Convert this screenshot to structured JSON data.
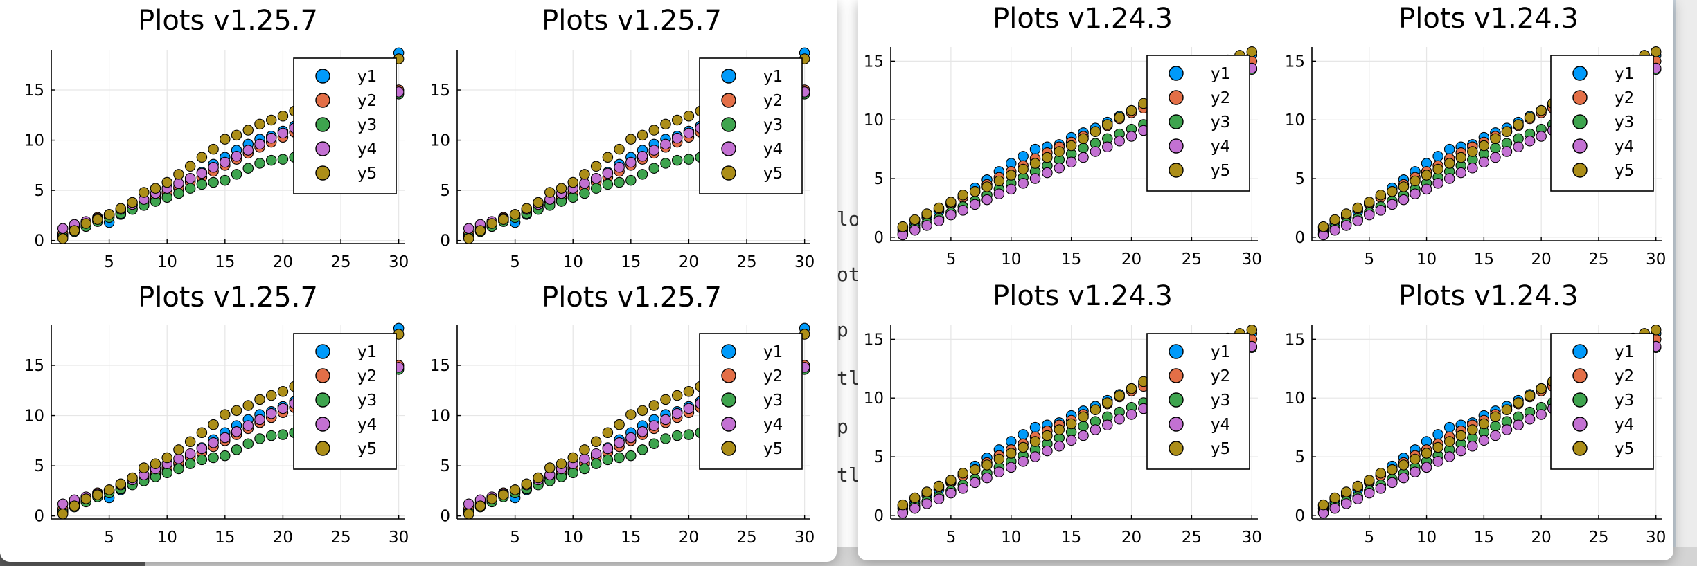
{
  "windows": [
    {
      "name": "plots-window-left",
      "version_title": "Plots v1.25.7"
    },
    {
      "name": "plots-window-right",
      "version_title": "Plots v1.24.3"
    }
  ],
  "background_fragments": [
    "lot",
    "ot(",
    "p",
    "tl",
    "p",
    "tl"
  ],
  "series_colors": {
    "y1": "#009afa",
    "y2": "#e36f47",
    "y3": "#3ea44e",
    "y4": "#c371d2",
    "y5": "#ac8e18"
  },
  "chart_data": [
    {
      "id": "left",
      "type": "scatter",
      "title": "Plots v1.25.7",
      "panels": 4,
      "xlabel": "",
      "ylabel": "",
      "xlim": [
        0,
        30.5
      ],
      "ylim": [
        -0.3,
        19
      ],
      "xticks": [
        5,
        10,
        15,
        20,
        25,
        30
      ],
      "yticks": [
        0,
        5,
        10,
        15
      ],
      "grid": true,
      "legend": "top-right",
      "x": [
        1,
        2,
        3,
        4,
        5,
        6,
        7,
        8,
        9,
        10,
        11,
        12,
        13,
        14,
        15,
        16,
        17,
        18,
        19,
        20,
        21,
        22,
        23,
        24,
        25,
        26,
        27,
        28,
        29,
        30
      ],
      "series": [
        {
          "name": "y1",
          "values": [
            0.5,
            1.1,
            1.6,
            2.0,
            1.8,
            2.6,
            3.2,
            3.8,
            4.2,
            4.7,
            5.2,
            6.0,
            6.8,
            7.6,
            8.3,
            9.0,
            9.6,
            10.1,
            10.4,
            10.9,
            11.4,
            11.8,
            12.2,
            12.6,
            13.2,
            13.9,
            14.6,
            15.3,
            16.8,
            18.7
          ]
        },
        {
          "name": "y2",
          "values": [
            0.7,
            1.3,
            1.8,
            2.3,
            2.5,
            3.0,
            3.5,
            3.9,
            4.4,
            4.8,
            5.3,
            5.8,
            6.3,
            6.9,
            7.5,
            8.1,
            8.7,
            9.3,
            9.8,
            10.3,
            10.8,
            11.3,
            11.8,
            12.3,
            12.8,
            13.3,
            13.8,
            14.2,
            14.6,
            15.0
          ]
        },
        {
          "name": "y3",
          "values": [
            0.4,
            0.9,
            1.4,
            1.9,
            2.3,
            2.7,
            3.1,
            3.5,
            3.9,
            4.3,
            4.7,
            5.2,
            5.6,
            5.8,
            6.0,
            6.6,
            7.2,
            7.7,
            8.0,
            8.1,
            8.3,
            8.5,
            8.9,
            9.5,
            10.2,
            11.0,
            11.9,
            12.8,
            13.8,
            14.6
          ]
        },
        {
          "name": "y4",
          "values": [
            1.2,
            1.6,
            1.9,
            2.2,
            2.6,
            3.1,
            3.6,
            4.1,
            4.7,
            5.2,
            5.7,
            6.2,
            6.7,
            7.3,
            7.8,
            8.4,
            9.0,
            9.6,
            10.2,
            10.7,
            11.2,
            11.7,
            12.2,
            12.7,
            13.2,
            13.6,
            14.0,
            14.3,
            14.6,
            14.8
          ]
        },
        {
          "name": "y5",
          "values": [
            0.2,
            1.0,
            1.7,
            2.1,
            2.6,
            3.2,
            3.8,
            4.8,
            5.2,
            5.8,
            6.6,
            7.4,
            8.3,
            9.1,
            10.1,
            10.5,
            11.0,
            11.6,
            12.0,
            12.4,
            12.9,
            13.3,
            13.8,
            14.3,
            14.8,
            15.3,
            15.8,
            16.5,
            17.2,
            18.1
          ]
        }
      ]
    },
    {
      "id": "right",
      "type": "scatter",
      "title": "Plots v1.24.3",
      "panels": 4,
      "xlabel": "",
      "ylabel": "",
      "xlim": [
        0,
        30.5
      ],
      "ylim": [
        -0.3,
        16.2
      ],
      "xticks": [
        5,
        10,
        15,
        20,
        25,
        30
      ],
      "yticks": [
        0,
        5,
        10,
        15
      ],
      "grid": true,
      "legend": "top-right",
      "x": [
        1,
        2,
        3,
        4,
        5,
        6,
        7,
        8,
        9,
        10,
        11,
        12,
        13,
        14,
        15,
        16,
        17,
        18,
        19,
        20,
        21,
        22,
        23,
        24,
        25,
        26,
        27,
        28,
        29,
        30
      ],
      "series": [
        {
          "name": "y1",
          "values": [
            0.6,
            1.1,
            1.7,
            2.2,
            2.8,
            3.4,
            4.2,
            4.9,
            5.6,
            6.3,
            6.9,
            7.5,
            7.7,
            7.9,
            8.5,
            8.9,
            9.3,
            9.8,
            10.3,
            10.8,
            11.2,
            11.6,
            12.2,
            12.8,
            13.3,
            13.8,
            14.3,
            14.8,
            15.2,
            15.5
          ]
        },
        {
          "name": "y2",
          "values": [
            0.8,
            1.4,
            1.9,
            2.4,
            2.9,
            3.4,
            3.9,
            4.5,
            5.1,
            5.6,
            6.1,
            6.7,
            7.2,
            7.7,
            8.1,
            8.6,
            9.0,
            9.5,
            10.1,
            10.6,
            11.0,
            11.4,
            11.8,
            12.2,
            12.6,
            13.0,
            13.5,
            14.0,
            14.5,
            15.0
          ]
        },
        {
          "name": "y3",
          "values": [
            0.3,
            0.8,
            1.2,
            1.6,
            2.1,
            2.6,
            3.1,
            3.6,
            4.1,
            4.6,
            5.1,
            5.6,
            6.1,
            6.6,
            7.1,
            7.6,
            8.0,
            8.4,
            8.8,
            9.2,
            9.6,
            10.0,
            10.4,
            10.8,
            11.2,
            11.7,
            12.3,
            12.9,
            13.6,
            14.3
          ]
        },
        {
          "name": "y4",
          "values": [
            0.2,
            0.6,
            1.0,
            1.4,
            1.9,
            2.3,
            2.8,
            3.2,
            3.7,
            4.1,
            4.6,
            5.0,
            5.5,
            5.9,
            6.4,
            6.8,
            7.3,
            7.7,
            8.2,
            8.6,
            9.1,
            9.5,
            10.0,
            10.4,
            10.9,
            11.3,
            11.8,
            12.3,
            13.3,
            14.4
          ]
        },
        {
          "name": "y5",
          "values": [
            0.9,
            1.5,
            2.0,
            2.5,
            3.0,
            3.6,
            3.9,
            4.3,
            4.8,
            5.3,
            5.8,
            6.3,
            6.8,
            7.3,
            7.8,
            8.4,
            9.0,
            9.6,
            10.2,
            10.8,
            11.4,
            11.9,
            12.3,
            12.8,
            13.3,
            13.9,
            14.5,
            15.1,
            15.5,
            15.8
          ]
        }
      ]
    }
  ]
}
